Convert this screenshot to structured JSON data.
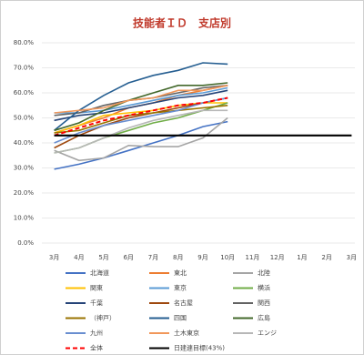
{
  "chart_data": {
    "type": "line",
    "title": "技能者ＩＤ　支店別",
    "categories": [
      "3月",
      "4月",
      "5月",
      "6月",
      "7月",
      "8月",
      "9月",
      "10月",
      "11月",
      "12月",
      "1月",
      "2月",
      "3月"
    ],
    "ylim": [
      0,
      80
    ],
    "yticks": [
      {
        "value": 0,
        "label": "0.0%"
      },
      {
        "value": 10,
        "label": "10.0%"
      },
      {
        "value": 20,
        "label": "20.0%"
      },
      {
        "value": 30,
        "label": "30.0%"
      },
      {
        "value": 40,
        "label": "40.0%"
      },
      {
        "value": 50,
        "label": "50.0%"
      },
      {
        "value": 60,
        "label": "60.0%"
      },
      {
        "value": 70,
        "label": "70.0%"
      },
      {
        "value": 80,
        "label": "80.0%"
      }
    ],
    "grid": true,
    "series": [
      {
        "name": "北海道",
        "color": "#4472c4",
        "values": [
          29.5,
          31.5,
          34,
          37,
          40,
          43,
          46.5,
          48.5,
          null,
          null,
          null,
          null,
          null
        ]
      },
      {
        "name": "東北",
        "color": "#ed7d31",
        "values": [
          44,
          47,
          50,
          54,
          56,
          59,
          61,
          63,
          null,
          null,
          null,
          null,
          null
        ]
      },
      {
        "name": "北陸",
        "color": "#a5a5a5",
        "values": [
          37,
          33,
          34,
          39,
          38.5,
          38.5,
          42,
          50,
          null,
          null,
          null,
          null,
          null
        ]
      },
      {
        "name": "関東",
        "color": "#ffc000",
        "values": [
          44,
          47,
          51,
          52,
          53,
          55,
          56,
          56,
          null,
          null,
          null,
          null,
          null
        ]
      },
      {
        "name": "東京",
        "color": "#5b9bd5",
        "values": [
          52,
          52,
          53,
          55,
          57,
          59,
          60,
          62,
          null,
          null,
          null,
          null,
          null
        ]
      },
      {
        "name": "横浜",
        "color": "#70ad47",
        "values": [
          36,
          38,
          42,
          45,
          48,
          50,
          53,
          56,
          null,
          null,
          null,
          null,
          null
        ]
      },
      {
        "name": "千葉",
        "color": "#264478",
        "values": [
          49,
          51,
          52,
          54,
          56,
          58,
          59,
          61,
          null,
          null,
          null,
          null,
          null
        ]
      },
      {
        "name": "名古屋",
        "color": "#9e480e",
        "values": [
          38,
          43,
          47,
          50,
          52,
          54,
          56,
          58,
          null,
          null,
          null,
          null,
          null
        ]
      },
      {
        "name": "関西",
        "color": "#636363",
        "values": [
          51,
          52,
          55,
          57,
          58,
          60,
          62,
          63,
          null,
          null,
          null,
          null,
          null
        ]
      },
      {
        "name": "（神戸）",
        "color": "#997300",
        "values": [
          44,
          45,
          48,
          51,
          52,
          53,
          54,
          55,
          null,
          null,
          null,
          null,
          null
        ]
      },
      {
        "name": "四国",
        "color": "#255e91",
        "values": [
          45,
          53,
          59,
          64,
          67,
          69,
          72,
          71.5,
          null,
          null,
          null,
          null,
          null
        ]
      },
      {
        "name": "広島",
        "color": "#43682b",
        "values": [
          45,
          48,
          53,
          57,
          60,
          63,
          63,
          64,
          null,
          null,
          null,
          null,
          null
        ]
      },
      {
        "name": "九州",
        "color": "#698ed0",
        "values": [
          40,
          44,
          47,
          49,
          51,
          53,
          56,
          58,
          null,
          null,
          null,
          null,
          null
        ]
      },
      {
        "name": "土木東京",
        "color": "#f1975a",
        "values": [
          52,
          53,
          54,
          57,
          58,
          61,
          61,
          63,
          null,
          null,
          null,
          null,
          null
        ]
      },
      {
        "name": "エンジ",
        "color": "#b7b7b7",
        "values": [
          36,
          38,
          42,
          46,
          49,
          51,
          53,
          53,
          null,
          null,
          null,
          null,
          null
        ]
      },
      {
        "name": "全体",
        "color": "#ff0000",
        "style": "dashed",
        "values": [
          43,
          46,
          49,
          51,
          53,
          55,
          56,
          58,
          null,
          null,
          null,
          null,
          null
        ]
      },
      {
        "name": "日建連目標(43%)",
        "color": "#000000",
        "values": [
          43,
          43,
          43,
          43,
          43,
          43,
          43,
          43,
          43,
          43,
          43,
          43,
          43
        ]
      }
    ]
  }
}
